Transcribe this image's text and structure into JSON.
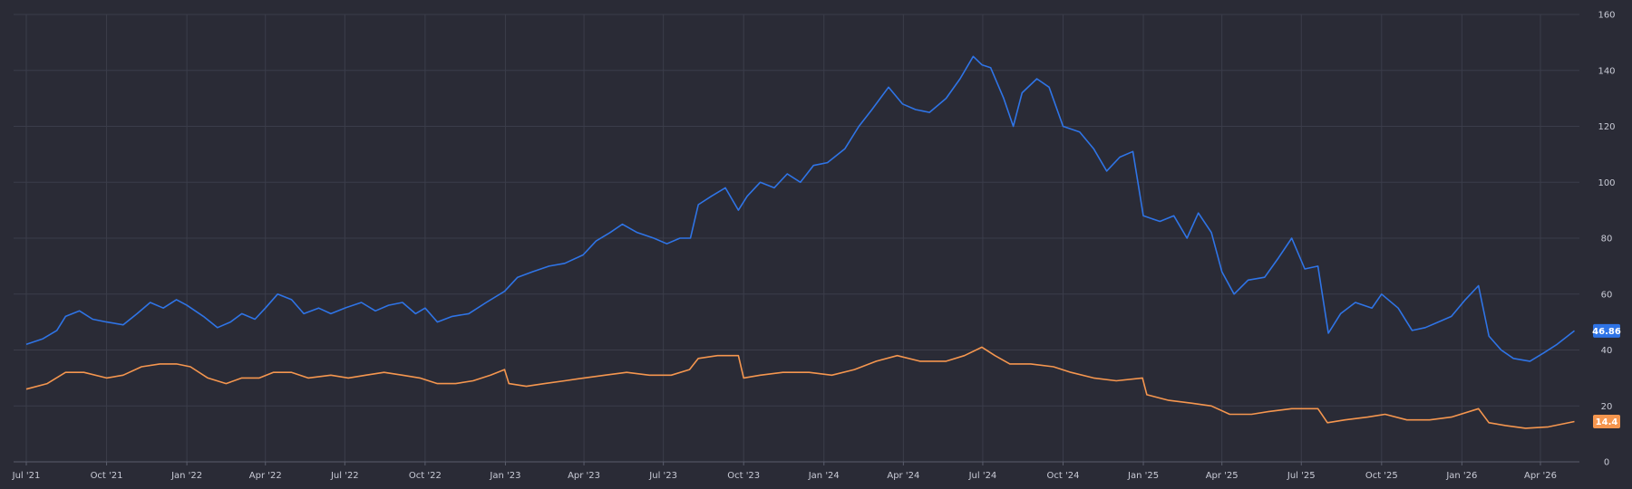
{
  "chart_data": {
    "type": "line",
    "title": "",
    "xlabel": "",
    "ylabel": "",
    "ylim": [
      0,
      160
    ],
    "y_ticks": [
      0,
      20,
      40,
      60,
      80,
      100,
      120,
      140,
      160
    ],
    "y_axis_side": "right",
    "grid": true,
    "legend": "none",
    "x_ticks": [
      {
        "date": "2021-07-01",
        "label": "Jul '21"
      },
      {
        "date": "2021-10-01",
        "label": "Oct '21"
      },
      {
        "date": "2022-01-01",
        "label": "Jan '22"
      },
      {
        "date": "2022-04-01",
        "label": "Apr '22"
      },
      {
        "date": "2022-07-01",
        "label": "Jul '22"
      },
      {
        "date": "2022-10-01",
        "label": "Oct '22"
      },
      {
        "date": "2023-01-01",
        "label": "Jan '23"
      },
      {
        "date": "2023-04-01",
        "label": "Apr '23"
      },
      {
        "date": "2023-07-01",
        "label": "Jul '23"
      },
      {
        "date": "2023-10-01",
        "label": "Oct '23"
      },
      {
        "date": "2024-01-01",
        "label": "Jan '24"
      },
      {
        "date": "2024-04-01",
        "label": "Apr '24"
      },
      {
        "date": "2024-07-01",
        "label": "Jul '24"
      },
      {
        "date": "2024-10-01",
        "label": "Oct '24"
      },
      {
        "date": "2025-01-01",
        "label": "Jan '25"
      },
      {
        "date": "2025-04-01",
        "label": "Apr '25"
      },
      {
        "date": "2025-07-01",
        "label": "Jul '25"
      },
      {
        "date": "2025-10-01",
        "label": "Oct '25"
      },
      {
        "date": "2026-01-01",
        "label": "Jan '26"
      },
      {
        "date": "2026-04-01",
        "label": "Apr '26"
      }
    ],
    "series": [
      {
        "color": "#2f74e6",
        "last_value_label": "46.86",
        "points": [
          [
            "2021-07-01",
            42
          ],
          [
            "2021-07-20",
            44
          ],
          [
            "2021-08-05",
            47
          ],
          [
            "2021-08-15",
            52
          ],
          [
            "2021-08-31",
            54
          ],
          [
            "2021-09-15",
            51
          ],
          [
            "2021-10-01",
            50
          ],
          [
            "2021-10-20",
            49
          ],
          [
            "2021-11-05",
            53
          ],
          [
            "2021-11-20",
            57
          ],
          [
            "2021-12-05",
            55
          ],
          [
            "2021-12-20",
            58
          ],
          [
            "2022-01-01",
            56
          ],
          [
            "2022-01-20",
            52
          ],
          [
            "2022-02-05",
            48
          ],
          [
            "2022-02-20",
            50
          ],
          [
            "2022-03-05",
            53
          ],
          [
            "2022-03-20",
            51
          ],
          [
            "2022-04-01",
            55
          ],
          [
            "2022-04-15",
            60
          ],
          [
            "2022-05-01",
            58
          ],
          [
            "2022-05-15",
            53
          ],
          [
            "2022-06-01",
            55
          ],
          [
            "2022-06-15",
            53
          ],
          [
            "2022-07-01",
            55
          ],
          [
            "2022-07-20",
            57
          ],
          [
            "2022-08-05",
            54
          ],
          [
            "2022-08-20",
            56
          ],
          [
            "2022-09-05",
            57
          ],
          [
            "2022-09-20",
            53
          ],
          [
            "2022-10-01",
            55
          ],
          [
            "2022-10-15",
            50
          ],
          [
            "2022-11-01",
            52
          ],
          [
            "2022-11-20",
            53
          ],
          [
            "2022-12-10",
            57
          ],
          [
            "2022-12-31",
            61
          ],
          [
            "2023-01-15",
            66
          ],
          [
            "2023-02-01",
            68
          ],
          [
            "2023-02-20",
            70
          ],
          [
            "2023-03-10",
            71
          ],
          [
            "2023-03-31",
            74
          ],
          [
            "2023-04-15",
            79
          ],
          [
            "2023-05-01",
            82
          ],
          [
            "2023-05-15",
            85
          ],
          [
            "2023-06-01",
            82
          ],
          [
            "2023-06-20",
            80
          ],
          [
            "2023-07-05",
            78
          ],
          [
            "2023-07-20",
            80
          ],
          [
            "2023-08-01",
            80
          ],
          [
            "2023-08-10",
            92
          ],
          [
            "2023-08-25",
            95
          ],
          [
            "2023-09-10",
            98
          ],
          [
            "2023-09-25",
            90
          ],
          [
            "2023-10-05",
            95
          ],
          [
            "2023-10-20",
            100
          ],
          [
            "2023-11-05",
            98
          ],
          [
            "2023-11-20",
            103
          ],
          [
            "2023-12-05",
            100
          ],
          [
            "2023-12-20",
            106
          ],
          [
            "2024-01-05",
            107
          ],
          [
            "2024-01-25",
            112
          ],
          [
            "2024-02-10",
            120
          ],
          [
            "2024-02-25",
            126
          ],
          [
            "2024-03-15",
            134
          ],
          [
            "2024-03-31",
            128
          ],
          [
            "2024-04-15",
            126
          ],
          [
            "2024-05-01",
            125
          ],
          [
            "2024-05-20",
            130
          ],
          [
            "2024-06-05",
            137
          ],
          [
            "2024-06-20",
            145
          ],
          [
            "2024-06-30",
            142
          ],
          [
            "2024-07-10",
            141
          ],
          [
            "2024-07-25",
            130
          ],
          [
            "2024-08-05",
            120
          ],
          [
            "2024-08-15",
            132
          ],
          [
            "2024-09-01",
            137
          ],
          [
            "2024-09-15",
            134
          ],
          [
            "2024-10-01",
            120
          ],
          [
            "2024-10-20",
            118
          ],
          [
            "2024-11-05",
            112
          ],
          [
            "2024-11-20",
            104
          ],
          [
            "2024-12-05",
            109
          ],
          [
            "2024-12-20",
            111
          ],
          [
            "2025-01-01",
            88
          ],
          [
            "2025-01-20",
            86
          ],
          [
            "2025-02-05",
            88
          ],
          [
            "2025-02-20",
            80
          ],
          [
            "2025-03-05",
            89
          ],
          [
            "2025-03-20",
            82
          ],
          [
            "2025-04-01",
            68
          ],
          [
            "2025-04-15",
            60
          ],
          [
            "2025-05-01",
            65
          ],
          [
            "2025-05-20",
            66
          ],
          [
            "2025-06-05",
            73
          ],
          [
            "2025-06-20",
            80
          ],
          [
            "2025-07-05",
            69
          ],
          [
            "2025-07-20",
            70
          ],
          [
            "2025-08-01",
            46
          ],
          [
            "2025-08-15",
            53
          ],
          [
            "2025-09-01",
            57
          ],
          [
            "2025-09-20",
            55
          ],
          [
            "2025-10-01",
            60
          ],
          [
            "2025-10-20",
            55
          ],
          [
            "2025-11-05",
            47
          ],
          [
            "2025-11-20",
            48
          ],
          [
            "2025-12-05",
            50
          ],
          [
            "2025-12-20",
            52
          ],
          [
            "2026-01-05",
            58
          ],
          [
            "2026-01-20",
            63
          ],
          [
            "2026-02-01",
            45
          ],
          [
            "2026-02-15",
            40
          ],
          [
            "2026-03-01",
            37
          ],
          [
            "2026-03-20",
            36
          ],
          [
            "2026-04-05",
            39
          ],
          [
            "2026-04-20",
            42
          ],
          [
            "2026-05-10",
            46.86
          ]
        ]
      },
      {
        "color": "#f5964f",
        "last_value_label": "14.4",
        "points": [
          [
            "2021-07-01",
            26
          ],
          [
            "2021-07-25",
            28
          ],
          [
            "2021-08-15",
            32
          ],
          [
            "2021-09-05",
            32
          ],
          [
            "2021-10-01",
            30
          ],
          [
            "2021-10-20",
            31
          ],
          [
            "2021-11-10",
            34
          ],
          [
            "2021-12-01",
            35
          ],
          [
            "2021-12-20",
            35
          ],
          [
            "2022-01-05",
            34
          ],
          [
            "2022-01-25",
            30
          ],
          [
            "2022-02-15",
            28
          ],
          [
            "2022-03-05",
            30
          ],
          [
            "2022-03-25",
            30
          ],
          [
            "2022-04-10",
            32
          ],
          [
            "2022-05-01",
            32
          ],
          [
            "2022-05-20",
            30
          ],
          [
            "2022-06-15",
            31
          ],
          [
            "2022-07-05",
            30
          ],
          [
            "2022-07-25",
            31
          ],
          [
            "2022-08-15",
            32
          ],
          [
            "2022-09-05",
            31
          ],
          [
            "2022-09-25",
            30
          ],
          [
            "2022-10-15",
            28
          ],
          [
            "2022-11-05",
            28
          ],
          [
            "2022-11-25",
            29
          ],
          [
            "2022-12-15",
            31
          ],
          [
            "2022-12-31",
            33
          ],
          [
            "2023-01-05",
            28
          ],
          [
            "2023-01-25",
            27
          ],
          [
            "2023-02-15",
            28
          ],
          [
            "2023-03-10",
            29
          ],
          [
            "2023-04-01",
            30
          ],
          [
            "2023-04-25",
            31
          ],
          [
            "2023-05-20",
            32
          ],
          [
            "2023-06-15",
            31
          ],
          [
            "2023-07-10",
            31
          ],
          [
            "2023-07-31",
            33
          ],
          [
            "2023-08-10",
            37
          ],
          [
            "2023-09-01",
            38
          ],
          [
            "2023-09-25",
            38
          ],
          [
            "2023-10-01",
            30
          ],
          [
            "2023-10-20",
            31
          ],
          [
            "2023-11-15",
            32
          ],
          [
            "2023-12-15",
            32
          ],
          [
            "2024-01-10",
            31
          ],
          [
            "2024-02-05",
            33
          ],
          [
            "2024-03-01",
            36
          ],
          [
            "2024-03-25",
            38
          ],
          [
            "2024-04-20",
            36
          ],
          [
            "2024-05-20",
            36
          ],
          [
            "2024-06-10",
            38
          ],
          [
            "2024-06-30",
            41
          ],
          [
            "2024-07-15",
            38
          ],
          [
            "2024-08-01",
            35
          ],
          [
            "2024-08-25",
            35
          ],
          [
            "2024-09-20",
            34
          ],
          [
            "2024-10-10",
            32
          ],
          [
            "2024-11-05",
            30
          ],
          [
            "2024-12-01",
            29
          ],
          [
            "2024-12-31",
            30
          ],
          [
            "2025-01-05",
            24
          ],
          [
            "2025-01-30",
            22
          ],
          [
            "2025-02-25",
            21
          ],
          [
            "2025-03-20",
            20
          ],
          [
            "2025-04-10",
            17
          ],
          [
            "2025-05-05",
            17
          ],
          [
            "2025-05-25",
            18
          ],
          [
            "2025-06-20",
            19
          ],
          [
            "2025-07-20",
            19
          ],
          [
            "2025-07-31",
            14
          ],
          [
            "2025-08-20",
            15
          ],
          [
            "2025-09-15",
            16
          ],
          [
            "2025-10-05",
            17
          ],
          [
            "2025-10-30",
            15
          ],
          [
            "2025-11-25",
            15
          ],
          [
            "2025-12-20",
            16
          ],
          [
            "2026-01-20",
            19
          ],
          [
            "2026-02-01",
            14
          ],
          [
            "2026-02-20",
            13
          ],
          [
            "2026-03-15",
            12
          ],
          [
            "2026-04-10",
            12.5
          ],
          [
            "2026-05-10",
            14.4
          ]
        ]
      }
    ]
  }
}
